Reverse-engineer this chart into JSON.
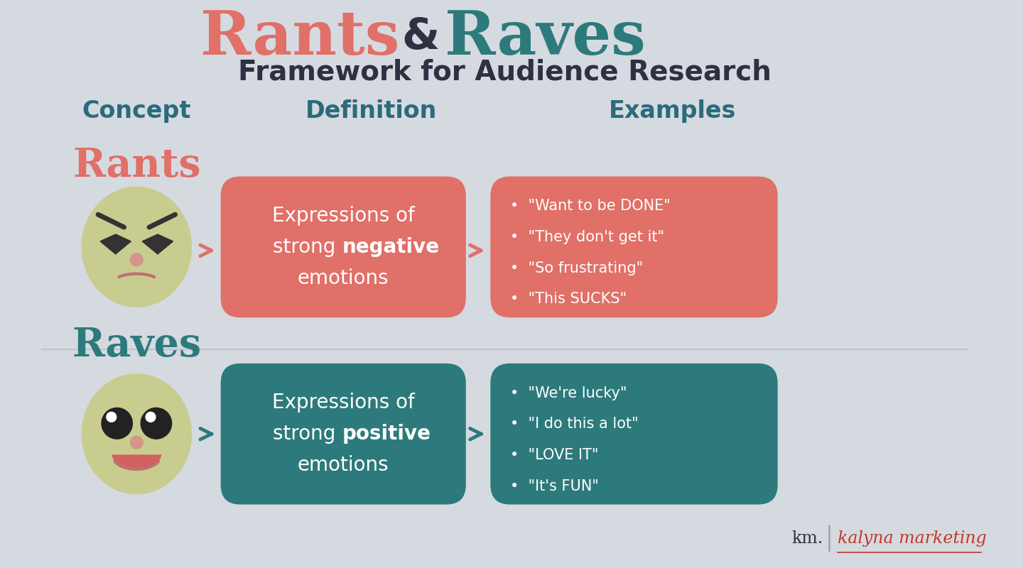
{
  "title_rants": "Rants",
  "title_ampersand": " & ",
  "title_raves": "Raves",
  "subtitle": "Framework for Audience Research",
  "col_headers": [
    "Concept",
    "Definition",
    "Examples"
  ],
  "col_header_color": "#2a6b7c",
  "bg_color": "#d5dae0",
  "rants_color": "#e07068",
  "raves_color": "#2d7a7c",
  "rants_label_color": "#e07068",
  "raves_label_color": "#2d7a7c",
  "rants_examples": [
    "\"Want to be DONE\"",
    "\"They don't get it\"",
    "\"So frustrating\"",
    "\"This SUCKS\""
  ],
  "raves_examples": [
    "\"We're lucky\"",
    "\"I do this a lot\"",
    "\"LOVE IT\"",
    "\"It's FUN\""
  ],
  "face_color": "#c9cc8f",
  "text_white": "#ffffff",
  "dark_text": "#2d3142",
  "watermark_km": "km.",
  "watermark_brand": "kalyna marketing",
  "watermark_km_color": "#2d3142",
  "watermark_brand_color": "#c0392b"
}
